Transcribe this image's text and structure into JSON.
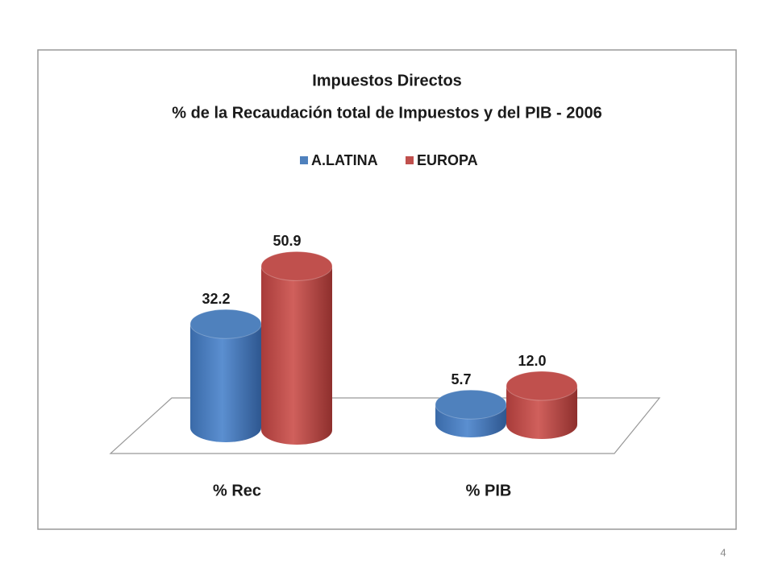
{
  "chart_data": {
    "type": "cylinder",
    "title": "Impuestos Directos",
    "subtitle": "% de la Recaudación total de Impuestos y del PIB - 2006",
    "categories": [
      "% Rec",
      "% PIB"
    ],
    "series": [
      {
        "name": "A.LATINA",
        "color": "#4f81bd",
        "values": [
          32.2,
          5.7
        ]
      },
      {
        "name": "EUROPA",
        "color": "#c0504d",
        "values": [
          50.9,
          12.0
        ],
        "value_labels": [
          "50.9",
          "12.0"
        ]
      }
    ],
    "legend": "top"
  },
  "slide_number": "4"
}
